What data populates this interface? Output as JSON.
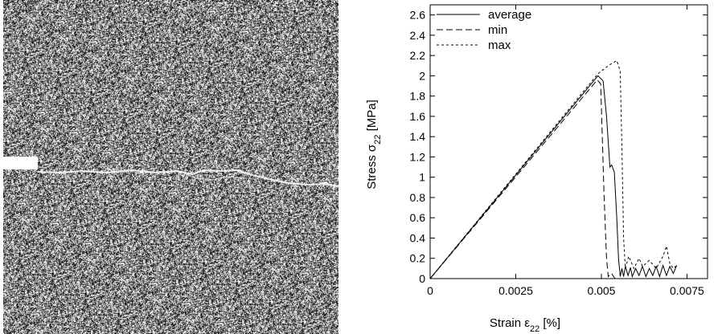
{
  "figure": {
    "left_panel": {
      "kind": "particle-fracture-simulation",
      "notch": true,
      "crack": true
    }
  },
  "chart_data": {
    "type": "line",
    "xlabel_main": "Strain ε",
    "xlabel_sub": "22",
    "xlabel_tail": " [%]",
    "ylabel_main": "Stress σ",
    "ylabel_sub": "22",
    "ylabel_tail": " [MPa]",
    "xlim": [
      0,
      0.0081
    ],
    "ylim": [
      0,
      2.7
    ],
    "x_ticks": [
      0,
      0.0025,
      0.005,
      0.0075
    ],
    "x_tick_labels": [
      "0",
      "0.0025",
      "0.005",
      "0.0075"
    ],
    "y_ticks": [
      0,
      0.2,
      0.4,
      0.6,
      0.8,
      1,
      1.2,
      1.4,
      1.6,
      1.8,
      2,
      2.2,
      2.4,
      2.6
    ],
    "y_tick_labels": [
      "0",
      "0.2",
      "0.4",
      "0.6",
      "0.8",
      "1",
      "1.2",
      "1.4",
      "1.6",
      "1.8",
      "2",
      "2.2",
      "2.4",
      "2.6"
    ],
    "grid": false,
    "legend_position": "top-left",
    "series": [
      {
        "name": "average",
        "style": "solid",
        "points": [
          [
            0,
            0
          ],
          [
            0.0049,
            2.0
          ],
          [
            0.00505,
            1.95
          ],
          [
            0.00515,
            1.6
          ],
          [
            0.0052,
            1.35
          ],
          [
            0.00525,
            1.1
          ],
          [
            0.0053,
            1.12
          ],
          [
            0.00538,
            1.05
          ],
          [
            0.00545,
            0.6
          ],
          [
            0.0055,
            0.2
          ],
          [
            0.00555,
            0.02
          ],
          [
            0.0056,
            0.1
          ],
          [
            0.00565,
            0.02
          ],
          [
            0.0057,
            0.12
          ],
          [
            0.00578,
            0.03
          ],
          [
            0.00585,
            0.11
          ],
          [
            0.0059,
            0.02
          ],
          [
            0.006,
            0.1
          ],
          [
            0.0061,
            0.03
          ],
          [
            0.0062,
            0.12
          ],
          [
            0.0063,
            0.02
          ],
          [
            0.0064,
            0.1
          ],
          [
            0.0065,
            0.03
          ],
          [
            0.0066,
            0.12
          ],
          [
            0.0067,
            0.02
          ],
          [
            0.0068,
            0.13
          ],
          [
            0.0069,
            0.03
          ],
          [
            0.007,
            0.12
          ],
          [
            0.0071,
            0.05
          ],
          [
            0.0072,
            0.13
          ]
        ]
      },
      {
        "name": "min",
        "style": "dashed",
        "points": [
          [
            0,
            0
          ],
          [
            0.00488,
            1.96
          ],
          [
            0.00498,
            1.92
          ],
          [
            0.00508,
            0.8
          ],
          [
            0.00515,
            0.2
          ],
          [
            0.0052,
            0.02
          ],
          [
            0.0053,
            0.05
          ],
          [
            0.0054,
            0.0
          ]
        ]
      },
      {
        "name": "max",
        "style": "dotted",
        "points": [
          [
            0,
            0
          ],
          [
            0.0049,
            2.02
          ],
          [
            0.0052,
            2.1
          ],
          [
            0.00545,
            2.15
          ],
          [
            0.00555,
            2.05
          ],
          [
            0.0056,
            1.3
          ],
          [
            0.00565,
            0.4
          ],
          [
            0.0057,
            0.1
          ],
          [
            0.0058,
            0.22
          ],
          [
            0.00595,
            0.1
          ],
          [
            0.0061,
            0.2
          ],
          [
            0.0062,
            0.12
          ],
          [
            0.0064,
            0.18
          ],
          [
            0.0066,
            0.1
          ],
          [
            0.0068,
            0.22
          ],
          [
            0.0069,
            0.32
          ],
          [
            0.007,
            0.15
          ],
          [
            0.0071,
            0.1
          ],
          [
            0.0072,
            0.13
          ]
        ]
      }
    ]
  }
}
